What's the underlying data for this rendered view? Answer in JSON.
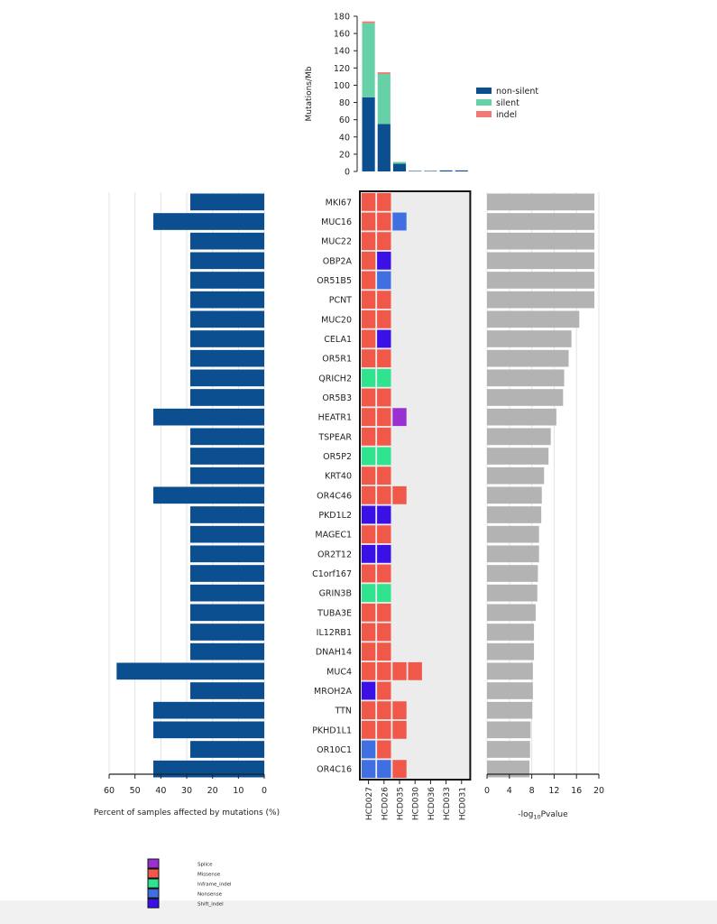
{
  "chart_data": [
    {
      "type": "bar",
      "stacked": true,
      "ylabel": "Mutations/Mb",
      "ylim": [
        0,
        180
      ],
      "yticks": [
        0,
        20,
        40,
        60,
        80,
        100,
        120,
        140,
        160,
        180
      ],
      "categories": [
        "HCD027",
        "HCD026",
        "HCD035",
        "HCD030",
        "HCD036",
        "HCD033",
        "HCD031"
      ],
      "series": [
        {
          "name": "non-silent",
          "color": "#0b4f91",
          "values": [
            86,
            55,
            9,
            0.6,
            0.6,
            1.2,
            1.2
          ]
        },
        {
          "name": "silent",
          "color": "#66d1a6",
          "values": [
            86,
            58,
            2,
            0,
            0,
            0,
            0
          ]
        },
        {
          "name": "indel",
          "color": "#f07a72",
          "values": [
            2,
            2,
            0,
            0,
            0,
            0,
            0
          ]
        }
      ],
      "legend_position": "right"
    },
    {
      "type": "bar",
      "orientation": "horizontal",
      "xlabel": "Percent of samples affected by mutations (%)",
      "xlim": [
        60,
        0
      ],
      "xticks": [
        60,
        50,
        40,
        30,
        20,
        10,
        0
      ],
      "grid": true,
      "color": "#0b4f91",
      "categories": [
        "MKI67",
        "MUC16",
        "MUC22",
        "OBP2A",
        "OR51B5",
        "PCNT",
        "MUC20",
        "CELA1",
        "OR5R1",
        "QRICH2",
        "OR5B3",
        "HEATR1",
        "TSPEAR",
        "OR5P2",
        "KRT40",
        "OR4C46",
        "PKD1L2",
        "MAGEC1",
        "OR2T12",
        "C1orf167",
        "GRIN3B",
        "TUBA3E",
        "IL12RB1",
        "DNAH14",
        "MUC4",
        "MROH2A",
        "TTN",
        "PKHD1L1",
        "OR10C1",
        "OR4C16"
      ],
      "values": [
        28.6,
        42.9,
        28.6,
        28.6,
        28.6,
        28.6,
        28.6,
        28.6,
        28.6,
        28.6,
        28.6,
        42.9,
        28.6,
        28.6,
        28.6,
        42.9,
        28.6,
        28.6,
        28.6,
        28.6,
        28.6,
        28.6,
        28.6,
        28.6,
        57.1,
        28.6,
        42.9,
        42.9,
        28.6,
        42.9
      ]
    },
    {
      "type": "heatmap",
      "rows": [
        "MKI67",
        "MUC16",
        "MUC22",
        "OBP2A",
        "OR51B5",
        "PCNT",
        "MUC20",
        "CELA1",
        "OR5R1",
        "QRICH2",
        "OR5B3",
        "HEATR1",
        "TSPEAR",
        "OR5P2",
        "KRT40",
        "OR4C46",
        "PKD1L2",
        "MAGEC1",
        "OR2T12",
        "C1orf167",
        "GRIN3B",
        "TUBA3E",
        "IL12RB1",
        "DNAH14",
        "MUC4",
        "MROH2A",
        "TTN",
        "PKHD1L1",
        "OR10C1",
        "OR4C16"
      ],
      "columns": [
        "HCD027",
        "HCD026",
        "HCD035",
        "HCD030",
        "HCD036",
        "HCD033",
        "HCD031"
      ],
      "cells": [
        [
          "M",
          "M",
          "",
          "",
          "",
          "",
          ""
        ],
        [
          "M",
          "M",
          "N",
          "",
          "",
          "",
          ""
        ],
        [
          "M",
          "M",
          "",
          "",
          "",
          "",
          ""
        ],
        [
          "M",
          "F",
          "",
          "",
          "",
          "",
          ""
        ],
        [
          "M",
          "N",
          "",
          "",
          "",
          "",
          ""
        ],
        [
          "M",
          "M",
          "",
          "",
          "",
          "",
          ""
        ],
        [
          "M",
          "M",
          "",
          "",
          "",
          "",
          ""
        ],
        [
          "M",
          "F",
          "",
          "",
          "",
          "",
          ""
        ],
        [
          "M",
          "M",
          "",
          "",
          "",
          "",
          ""
        ],
        [
          "I",
          "I",
          "",
          "",
          "",
          "",
          ""
        ],
        [
          "M",
          "M",
          "",
          "",
          "",
          "",
          ""
        ],
        [
          "M",
          "M",
          "S",
          "",
          "",
          "",
          ""
        ],
        [
          "M",
          "M",
          "",
          "",
          "",
          "",
          ""
        ],
        [
          "I",
          "I",
          "",
          "",
          "",
          "",
          ""
        ],
        [
          "M",
          "M",
          "",
          "",
          "",
          "",
          ""
        ],
        [
          "M",
          "M",
          "M",
          "",
          "",
          "",
          ""
        ],
        [
          "F",
          "F",
          "",
          "",
          "",
          "",
          ""
        ],
        [
          "M",
          "M",
          "",
          "",
          "",
          "",
          ""
        ],
        [
          "F",
          "F",
          "",
          "",
          "",
          "",
          ""
        ],
        [
          "M",
          "M",
          "",
          "",
          "",
          "",
          ""
        ],
        [
          "I",
          "I",
          "",
          "",
          "",
          "",
          ""
        ],
        [
          "M",
          "M",
          "",
          "",
          "",
          "",
          ""
        ],
        [
          "M",
          "M",
          "",
          "",
          "",
          "",
          ""
        ],
        [
          "M",
          "M",
          "",
          "",
          "",
          "",
          ""
        ],
        [
          "M",
          "M",
          "M",
          "M",
          "",
          "",
          ""
        ],
        [
          "F",
          "M",
          "",
          "",
          "",
          "",
          ""
        ],
        [
          "M",
          "M",
          "M",
          "",
          "",
          "",
          ""
        ],
        [
          "M",
          "M",
          "M",
          "",
          "",
          "",
          ""
        ],
        [
          "N",
          "M",
          "",
          "",
          "",
          "",
          ""
        ],
        [
          "N",
          "N",
          "M",
          "",
          "",
          "",
          ""
        ]
      ],
      "code_colors": {
        "S": "#9b30d0",
        "M": "#f0584a",
        "I": "#2fe38f",
        "N": "#3f6fe0",
        "F": "#3a10e6",
        "": "#ececec"
      },
      "legend": [
        {
          "code": "S",
          "label": "Splice"
        },
        {
          "code": "M",
          "label": "Missense"
        },
        {
          "code": "I",
          "label": "Inframe_indel"
        },
        {
          "code": "N",
          "label": "Nonsense"
        },
        {
          "code": "F",
          "label": "Shift_indel"
        }
      ]
    },
    {
      "type": "bar",
      "orientation": "horizontal",
      "xlabel": "-log10Pvalue",
      "xlim": [
        0,
        20
      ],
      "xticks": [
        0,
        4,
        8,
        12,
        16,
        20
      ],
      "grid": true,
      "color": "#b3b3b3",
      "categories": [
        "MKI67",
        "MUC16",
        "MUC22",
        "OBP2A",
        "OR51B5",
        "PCNT",
        "MUC20",
        "CELA1",
        "OR5R1",
        "QRICH2",
        "OR5B3",
        "HEATR1",
        "TSPEAR",
        "OR5P2",
        "KRT40",
        "OR4C46",
        "PKD1L2",
        "MAGEC1",
        "OR2T12",
        "C1orf167",
        "GRIN3B",
        "TUBA3E",
        "IL12RB1",
        "DNAH14",
        "MUC4",
        "MROH2A",
        "TTN",
        "PKHD1L1",
        "OR10C1",
        "OR4C16"
      ],
      "values": [
        19.2,
        19.2,
        19.2,
        19.2,
        19.2,
        19.2,
        16.5,
        15.1,
        14.6,
        13.8,
        13.6,
        12.4,
        11.4,
        11.0,
        10.2,
        9.8,
        9.7,
        9.3,
        9.3,
        9.1,
        9.0,
        8.7,
        8.4,
        8.4,
        8.2,
        8.2,
        8.1,
        7.8,
        7.7,
        7.6
      ]
    }
  ]
}
